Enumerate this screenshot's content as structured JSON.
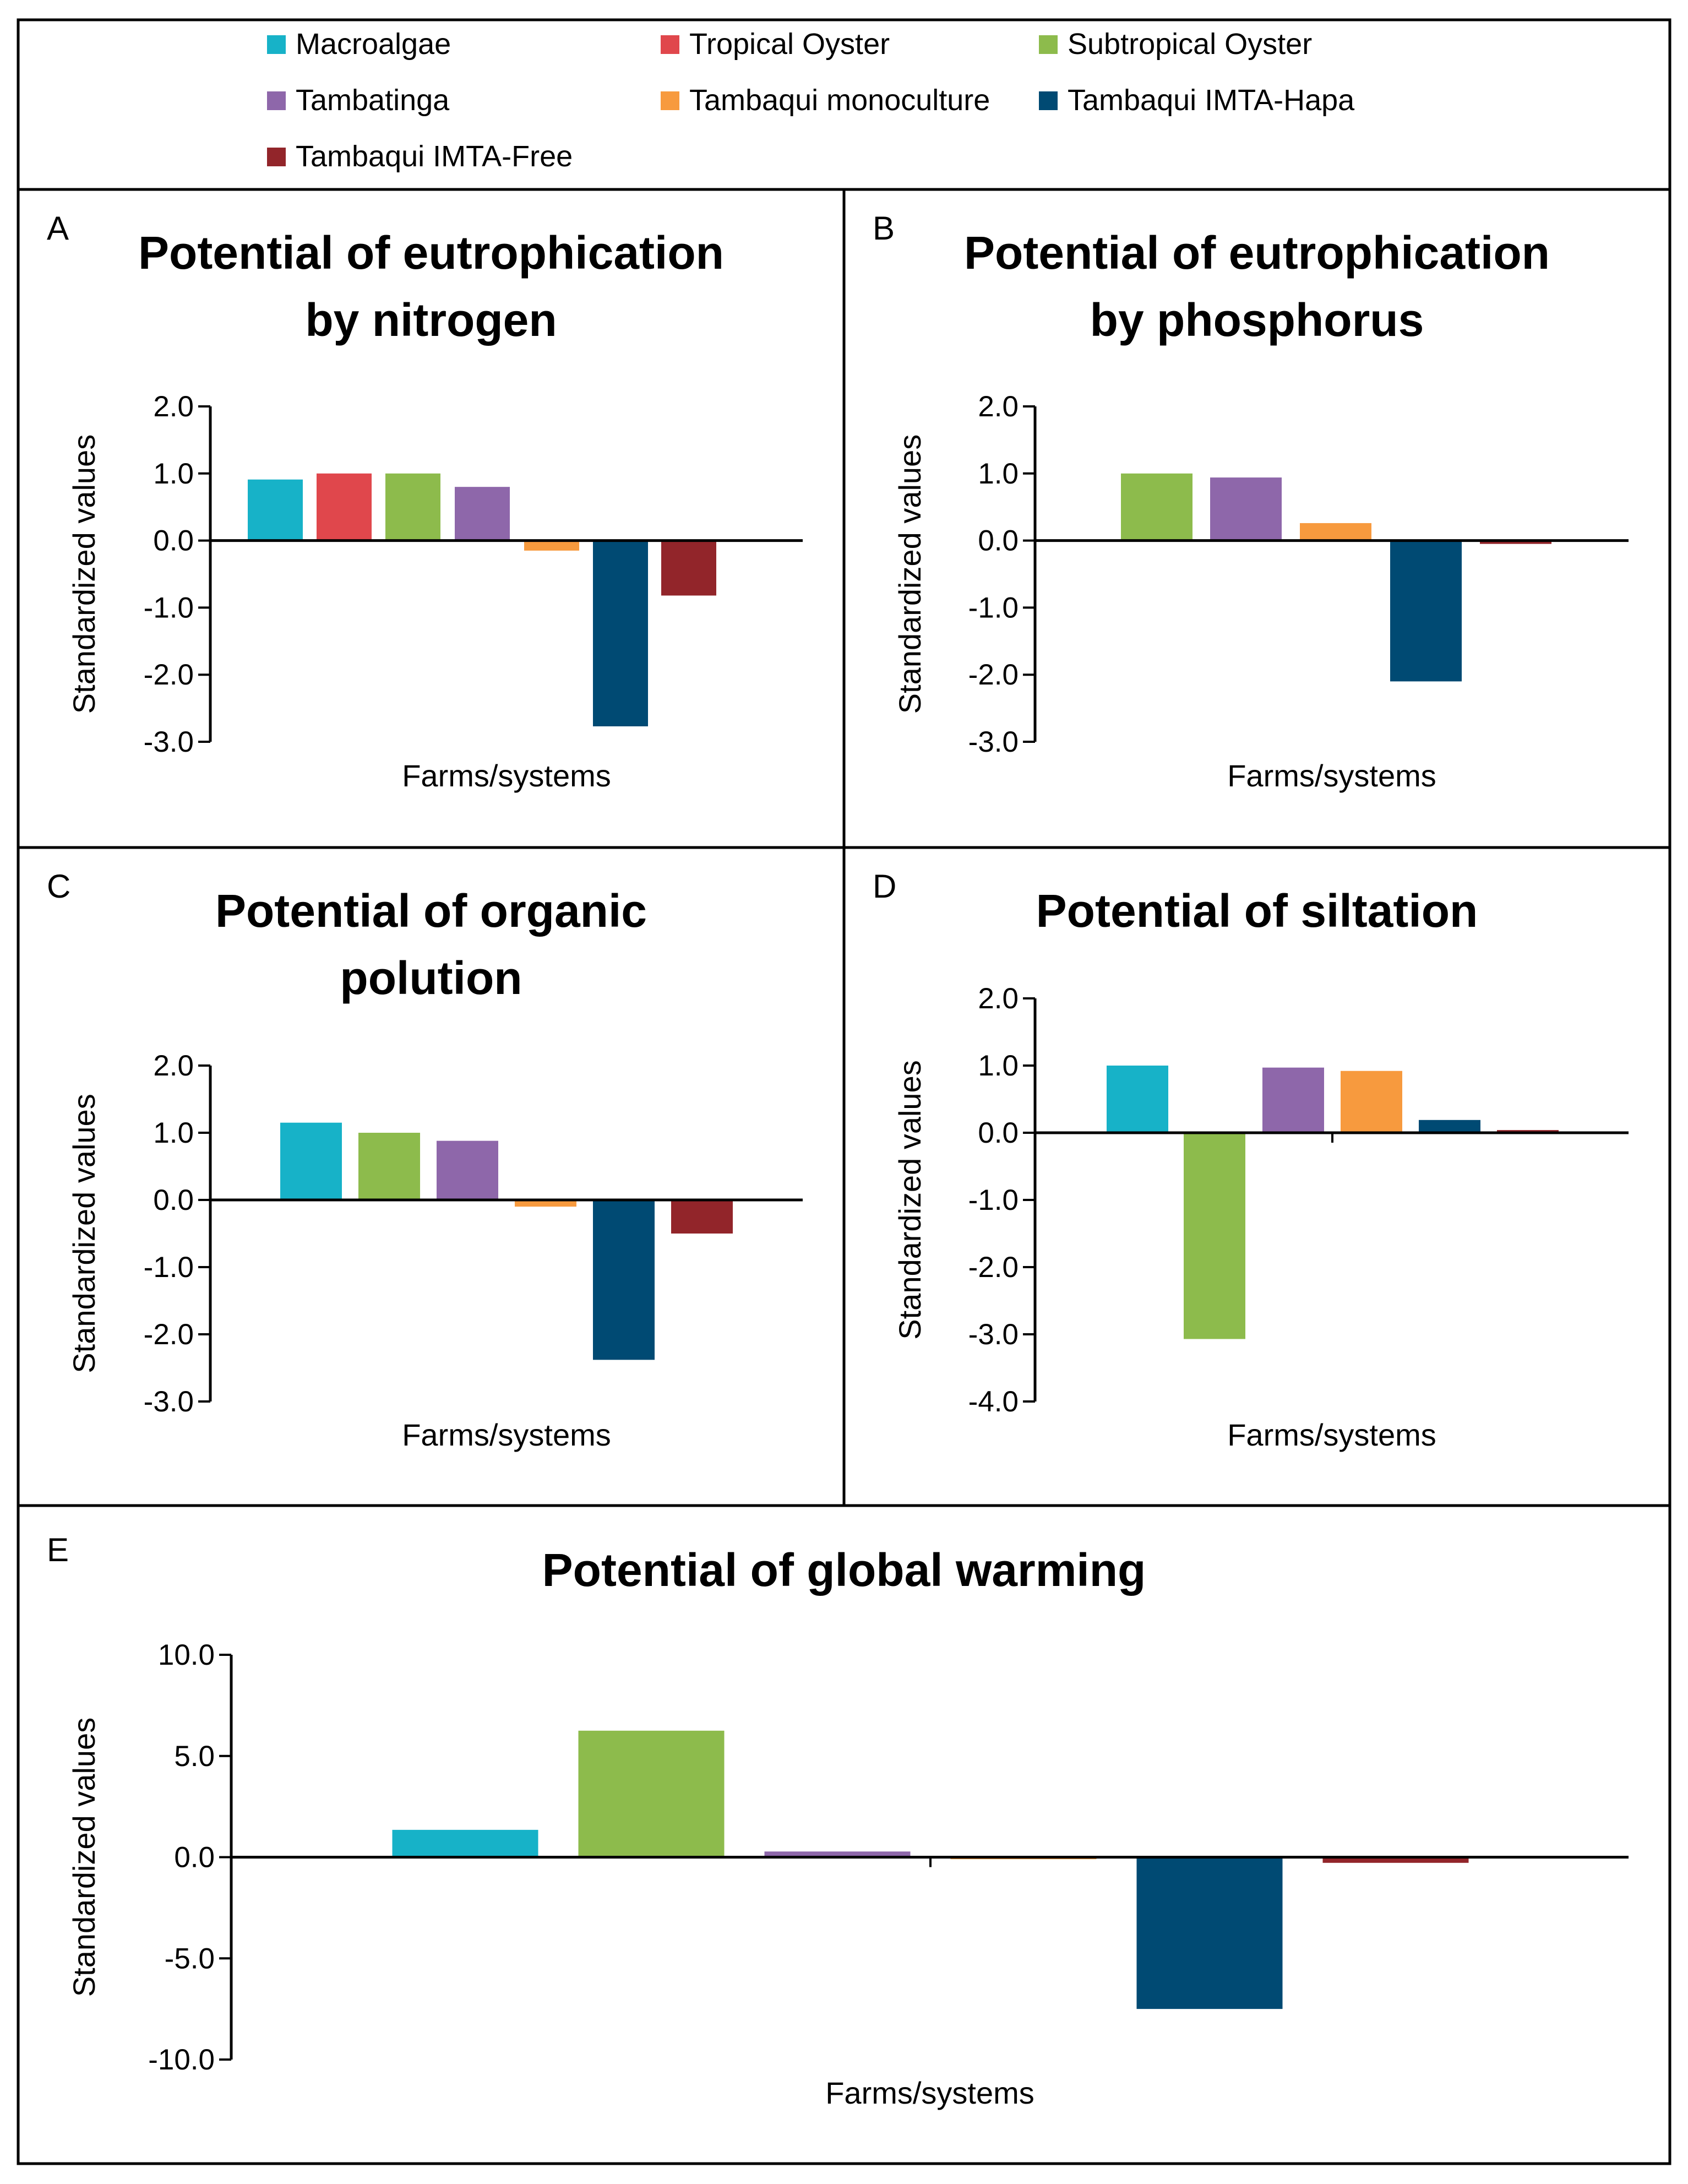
{
  "series_colors": {
    "Macroalgae": "#17B2C8",
    "Tropical Oyster": "#E0474C",
    "Subtropical Oyster": "#8DBB4C",
    "Tambatinga": "#8E67AA",
    "Tambaqui monoculture": "#F79A3E",
    "Tambaqui IMTA-Hapa": "#004A73",
    "Tambaqui IMTA-Free": "#92252A"
  },
  "legend": {
    "items": [
      {
        "label": "Macroalgae",
        "color": "#17B2C8"
      },
      {
        "label": "Tropical Oyster",
        "color": "#E0474C"
      },
      {
        "label": "Subtropical Oyster",
        "color": "#8DBB4C"
      },
      {
        "label": "Tambatinga",
        "color": "#8E67AA"
      },
      {
        "label": "Tambaqui monoculture",
        "color": "#F79A3E"
      },
      {
        "label": "Tambaqui IMTA-Hapa",
        "color": "#004A73"
      },
      {
        "label": "Tambaqui IMTA-Free",
        "color": "#92252A"
      }
    ]
  },
  "chart_data": [
    {
      "id": "A",
      "type": "bar",
      "title": [
        "Potential of eutrophication",
        "by nitrogen"
      ],
      "xlabel": "Farms/systems",
      "ylabel": "Standardized values",
      "ylim": [
        -3,
        2
      ],
      "yticks": [
        "2.0",
        "1.0",
        "0.0",
        "-1.0",
        "-2.0",
        "-3.0"
      ],
      "categories": [
        "Macroalgae",
        "Tropical Oyster",
        "Subtropical Oyster",
        "Tambatinga",
        "Tambaqui monoculture",
        "Tambaqui IMTA-Hapa",
        "Tambaqui IMTA-Free"
      ],
      "values": [
        0.91,
        1.0,
        1.0,
        0.8,
        -0.15,
        -2.77,
        -0.82
      ]
    },
    {
      "id": "B",
      "type": "bar",
      "title": [
        "Potential of eutrophication",
        "by phosphorus"
      ],
      "xlabel": "Farms/systems",
      "ylabel": "Standardized values",
      "ylim": [
        -3,
        2
      ],
      "yticks": [
        "2.0",
        "1.0",
        "0.0",
        "-1.0",
        "-2.0",
        "-3.0"
      ],
      "categories": [
        "Subtropical Oyster",
        "Tambatinga",
        "Tambaqui monoculture",
        "Tambaqui IMTA-Hapa",
        "Tambaqui IMTA-Free"
      ],
      "values": [
        1.0,
        0.94,
        0.26,
        -2.1,
        -0.05
      ]
    },
    {
      "id": "C",
      "type": "bar",
      "title": [
        "Potential of organic",
        "polution"
      ],
      "xlabel": "Farms/systems",
      "ylabel": "Standardized values",
      "ylim": [
        -3,
        2
      ],
      "yticks": [
        "2.0",
        "1.0",
        "0.0",
        "-1.0",
        "-2.0",
        "-3.0"
      ],
      "categories": [
        "Macroalgae",
        "Subtropical Oyster",
        "Tambatinga",
        "Tambaqui monoculture",
        "Tambaqui IMTA-Hapa",
        "Tambaqui IMTA-Free"
      ],
      "values": [
        1.15,
        1.0,
        0.88,
        -0.1,
        -2.38,
        -0.5
      ]
    },
    {
      "id": "D",
      "type": "bar",
      "title": [
        "Potential of siltation"
      ],
      "xlabel": "Farms/systems",
      "ylabel": "Standardized values",
      "ylim": [
        -4,
        2
      ],
      "yticks": [
        "2.0",
        "1.0",
        "0.0",
        "-1.0",
        "-2.0",
        "-3.0",
        "-4.0"
      ],
      "categories": [
        "Macroalgae",
        "Subtropical Oyster",
        "Tambatinga",
        "Tambaqui monoculture",
        "Tambaqui IMTA-Hapa",
        "Tambaqui IMTA-Free"
      ],
      "values": [
        1.0,
        -3.07,
        0.97,
        0.92,
        0.19,
        0.04
      ]
    },
    {
      "id": "E",
      "type": "bar",
      "title": [
        "Potential of global warming"
      ],
      "xlabel": "Farms/systems",
      "ylabel": "Standardized values",
      "ylim": [
        -10,
        10
      ],
      "yticks": [
        "10.0",
        "5.0",
        "0.0",
        "-5.0",
        "-10.0"
      ],
      "categories": [
        "Macroalgae",
        "Subtropical Oyster",
        "Tambatinga",
        "Tambaqui monoculture",
        "Tambaqui IMTA-Hapa",
        "Tambaqui IMTA-Free"
      ],
      "values": [
        1.35,
        6.25,
        0.28,
        -0.1,
        -7.5,
        -0.28
      ]
    }
  ]
}
